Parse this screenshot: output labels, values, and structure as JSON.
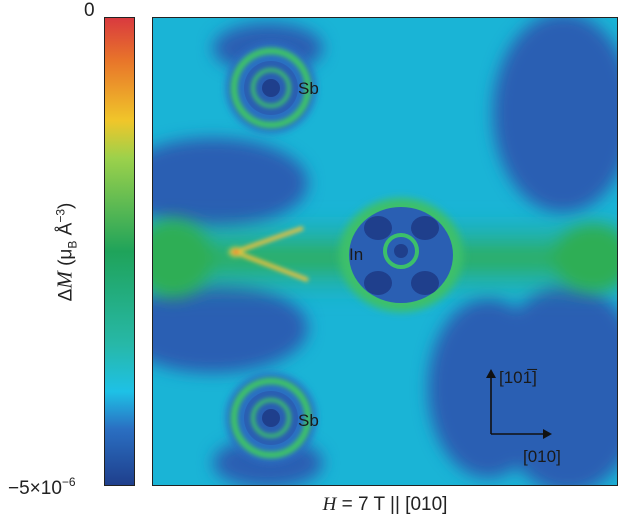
{
  "colorbar": {
    "max_label": "0",
    "min_label": "−5×10",
    "min_exponent": "−6",
    "label_prefix": "Δ",
    "label_var": "M",
    "label_open": " (μ",
    "label_sub": "B",
    "label_unit": " Å",
    "label_exp": "−3",
    "label_close": ")",
    "colors": [
      "#d93a3f",
      "#e8742a",
      "#f0c62a",
      "#9cd14b",
      "#1fa35a",
      "#27b8a8",
      "#1ec1e6",
      "#2a6fc2",
      "#1f3f8c"
    ]
  },
  "map": {
    "atom_labels": {
      "sb_top": "Sb",
      "in": "In",
      "sb_bottom": "Sb"
    },
    "axis_up": "[101̅]",
    "axis_right": "[010]"
  },
  "xlabel": {
    "var": "H",
    "text": " = 7 T || [010]"
  }
}
